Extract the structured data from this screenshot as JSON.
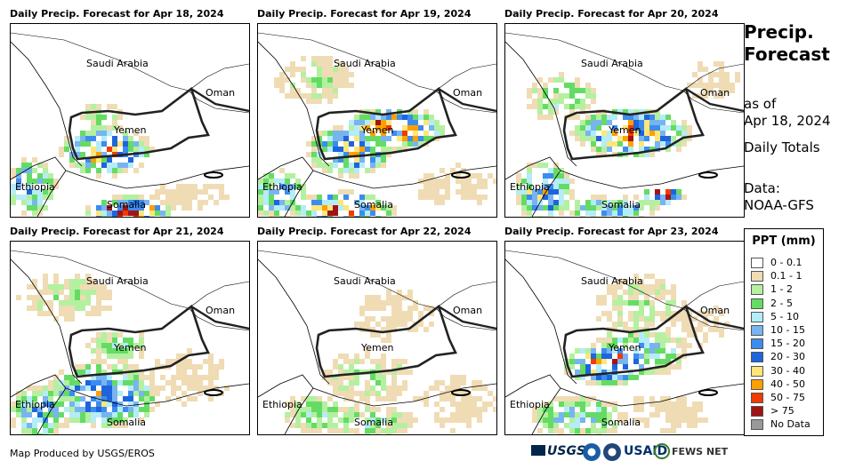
{
  "panels": [
    {
      "title": "Daily Precip. Forecast for Apr 18, 2024",
      "variant": "low"
    },
    {
      "title": "Daily Precip. Forecast for Apr 19, 2024",
      "variant": "mid"
    },
    {
      "title": "Daily Precip. Forecast for Apr 20, 2024",
      "variant": "high"
    },
    {
      "title": "Daily Precip. Forecast for Apr 21, 2024",
      "variant": "south"
    },
    {
      "title": "Daily Precip. Forecast for Apr 22, 2024",
      "variant": "dry"
    },
    {
      "title": "Daily Precip. Forecast for Apr 23, 2024",
      "variant": "west"
    }
  ],
  "map_labels": {
    "saudi": "Saudi Arabia",
    "oman": "Oman",
    "yemen": "Yemen",
    "ethiopia": "Ethiopia",
    "somalia": "Somalia"
  },
  "side": {
    "title_line1": "Precip.",
    "title_line2": "Forecast",
    "asof_line1": "as of",
    "asof_line2": "Apr 18, 2024",
    "totals": "Daily Totals",
    "data_line1": "Data:",
    "data_line2": "NOAA-GFS"
  },
  "legend": {
    "title": "PPT (mm)",
    "items": [
      {
        "label": "0 - 0.1",
        "color": "#ffffff"
      },
      {
        "label": "0.1 - 1",
        "color": "#f0dcb4"
      },
      {
        "label": "1 - 2",
        "color": "#b4f0a0"
      },
      {
        "label": "2 - 5",
        "color": "#64dc64"
      },
      {
        "label": "5 - 10",
        "color": "#b4ecf8"
      },
      {
        "label": "10 - 15",
        "color": "#78b4f0"
      },
      {
        "label": "15 - 20",
        "color": "#3c8cf0"
      },
      {
        "label": "20 - 30",
        "color": "#1e64dc"
      },
      {
        "label": "30 - 40",
        "color": "#ffe678"
      },
      {
        "label": "40 - 50",
        "color": "#ffa000"
      },
      {
        "label": "50 - 75",
        "color": "#f03c00"
      },
      {
        "label": "> 75",
        "color": "#a01414"
      },
      {
        "label": "No Data",
        "color": "#999999"
      }
    ]
  },
  "credit": "Map Produced by USGS/EROS",
  "logos": {
    "usgs": "USGS",
    "usaid": "USAID",
    "fews": "FEWS NET"
  }
}
